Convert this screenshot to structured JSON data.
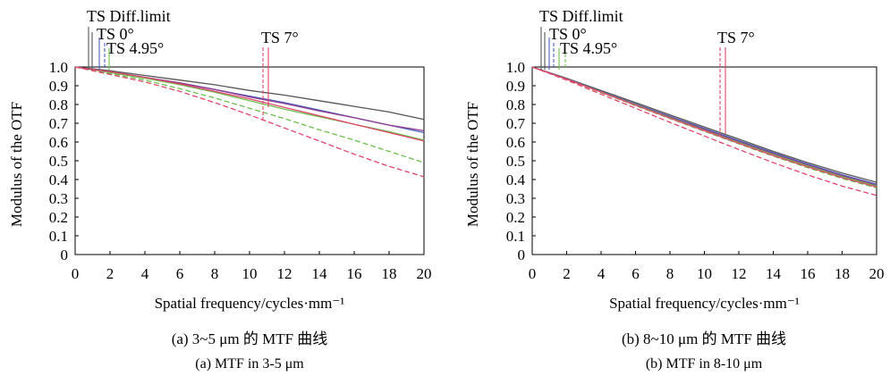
{
  "chart_data": [
    {
      "type": "line",
      "xlabel": "Spatial frequency/cycles·mm⁻¹",
      "ylabel": "Modulus of the OTF",
      "xlim": [
        0,
        20
      ],
      "ylim": [
        0,
        1
      ],
      "xticks": [
        "0",
        "2",
        "4",
        "6",
        "8",
        "10",
        "12",
        "14",
        "16",
        "18",
        "20"
      ],
      "yticks": [
        "0",
        "0.1",
        "0.2",
        "0.3",
        "0.4",
        "0.5",
        "0.6",
        "0.7",
        "0.8",
        "0.9",
        "1.0"
      ],
      "legend_labels": [
        "TS Diff.limit",
        "TS 0°",
        "TS 4.95°",
        "TS 7°"
      ],
      "caption_cn": "(a) 3~5 μm 的 MTF 曲线",
      "caption_en": "(a)  MTF in 3-5 μm",
      "grid": false,
      "series": [
        {
          "color": "#555555",
          "dash": false,
          "x": [
            0,
            2,
            4,
            6,
            8,
            10,
            12,
            14,
            16,
            18,
            20
          ],
          "y": [
            1.0,
            0.98,
            0.955,
            0.93,
            0.905,
            0.875,
            0.85,
            0.82,
            0.79,
            0.76,
            0.72
          ]
        },
        {
          "color": "#4a5fc1",
          "dash": false,
          "x": [
            0,
            2,
            4,
            6,
            8,
            10,
            12,
            14,
            16,
            18,
            20
          ],
          "y": [
            1.0,
            0.975,
            0.945,
            0.915,
            0.88,
            0.845,
            0.81,
            0.77,
            0.73,
            0.69,
            0.65
          ]
        },
        {
          "color": "#8e3a8e",
          "dash": false,
          "x": [
            0,
            2,
            4,
            6,
            8,
            10,
            12,
            14,
            16,
            18,
            20
          ],
          "y": [
            1.0,
            0.975,
            0.945,
            0.915,
            0.88,
            0.84,
            0.805,
            0.765,
            0.73,
            0.69,
            0.66
          ]
        },
        {
          "color": "#6abf4b",
          "dash": false,
          "x": [
            0,
            2,
            4,
            6,
            8,
            10,
            12,
            14,
            16,
            18,
            20
          ],
          "y": [
            1.0,
            0.97,
            0.94,
            0.905,
            0.865,
            0.82,
            0.775,
            0.735,
            0.695,
            0.655,
            0.61
          ]
        },
        {
          "color": "#6abf4b",
          "dash": true,
          "x": [
            0,
            2,
            4,
            6,
            8,
            10,
            12,
            14,
            16,
            18,
            20
          ],
          "y": [
            1.0,
            0.965,
            0.93,
            0.885,
            0.835,
            0.78,
            0.725,
            0.665,
            0.61,
            0.55,
            0.49
          ]
        },
        {
          "color": "#e2456d",
          "dash": false,
          "x": [
            0,
            2,
            4,
            6,
            8,
            10,
            12,
            14,
            16,
            18,
            20
          ],
          "y": [
            1.0,
            0.975,
            0.945,
            0.91,
            0.87,
            0.83,
            0.785,
            0.74,
            0.695,
            0.65,
            0.605
          ]
        },
        {
          "color": "#e2456d",
          "dash": true,
          "x": [
            0,
            2,
            4,
            6,
            8,
            10,
            12,
            14,
            16,
            18,
            20
          ],
          "y": [
            1.0,
            0.96,
            0.92,
            0.87,
            0.81,
            0.745,
            0.675,
            0.605,
            0.535,
            0.47,
            0.415
          ]
        }
      ]
    },
    {
      "type": "line",
      "xlabel": "Spatial frequency/cycles·mm⁻¹",
      "ylabel": "Modulus of the OTF",
      "xlim": [
        0,
        20
      ],
      "ylim": [
        0,
        1
      ],
      "xticks": [
        "0",
        "2",
        "4",
        "6",
        "8",
        "10",
        "12",
        "14",
        "16",
        "18",
        "20"
      ],
      "yticks": [
        "0",
        "0.1",
        "0.2",
        "0.3",
        "0.4",
        "0.5",
        "0.6",
        "0.7",
        "0.8",
        "0.9",
        "1.0"
      ],
      "legend_labels": [
        "TS Diff.limit",
        "TS 0°",
        "TS 4.95°",
        "TS 7°"
      ],
      "caption_cn": "(b) 8~10 μm 的 MTF 曲线",
      "caption_en": "(b)  MTF in 8-10 μm",
      "grid": false,
      "series": [
        {
          "color": "#555555",
          "dash": false,
          "x": [
            0,
            2,
            4,
            6,
            8,
            10,
            12,
            14,
            16,
            18,
            20
          ],
          "y": [
            1.0,
            0.94,
            0.875,
            0.81,
            0.745,
            0.68,
            0.615,
            0.55,
            0.49,
            0.435,
            0.385
          ]
        },
        {
          "color": "#4a5fc1",
          "dash": false,
          "x": [
            0,
            2,
            4,
            6,
            8,
            10,
            12,
            14,
            16,
            18,
            20
          ],
          "y": [
            1.0,
            0.937,
            0.87,
            0.803,
            0.737,
            0.672,
            0.607,
            0.543,
            0.482,
            0.425,
            0.375
          ]
        },
        {
          "color": "#8e3a8e",
          "dash": false,
          "x": [
            0,
            2,
            4,
            6,
            8,
            10,
            12,
            14,
            16,
            18,
            20
          ],
          "y": [
            1.0,
            0.936,
            0.868,
            0.8,
            0.733,
            0.668,
            0.602,
            0.538,
            0.477,
            0.42,
            0.37
          ]
        },
        {
          "color": "#6abf4b",
          "dash": false,
          "x": [
            0,
            2,
            4,
            6,
            8,
            10,
            12,
            14,
            16,
            18,
            20
          ],
          "y": [
            1.0,
            0.935,
            0.867,
            0.798,
            0.73,
            0.663,
            0.597,
            0.533,
            0.472,
            0.415,
            0.365
          ]
        },
        {
          "color": "#6abf4b",
          "dash": true,
          "x": [
            0,
            2,
            4,
            6,
            8,
            10,
            12,
            14,
            16,
            18,
            20
          ],
          "y": [
            1.0,
            0.934,
            0.864,
            0.794,
            0.725,
            0.657,
            0.59,
            0.525,
            0.463,
            0.405,
            0.355
          ]
        },
        {
          "color": "#e2456d",
          "dash": false,
          "x": [
            0,
            2,
            4,
            6,
            8,
            10,
            12,
            14,
            16,
            18,
            20
          ],
          "y": [
            1.0,
            0.935,
            0.866,
            0.796,
            0.727,
            0.66,
            0.593,
            0.528,
            0.467,
            0.41,
            0.36
          ]
        },
        {
          "color": "#e2456d",
          "dash": true,
          "x": [
            0,
            2,
            4,
            6,
            8,
            10,
            12,
            14,
            16,
            18,
            20
          ],
          "y": [
            1.0,
            0.93,
            0.855,
            0.78,
            0.705,
            0.632,
            0.56,
            0.49,
            0.425,
            0.365,
            0.315
          ]
        }
      ]
    }
  ]
}
